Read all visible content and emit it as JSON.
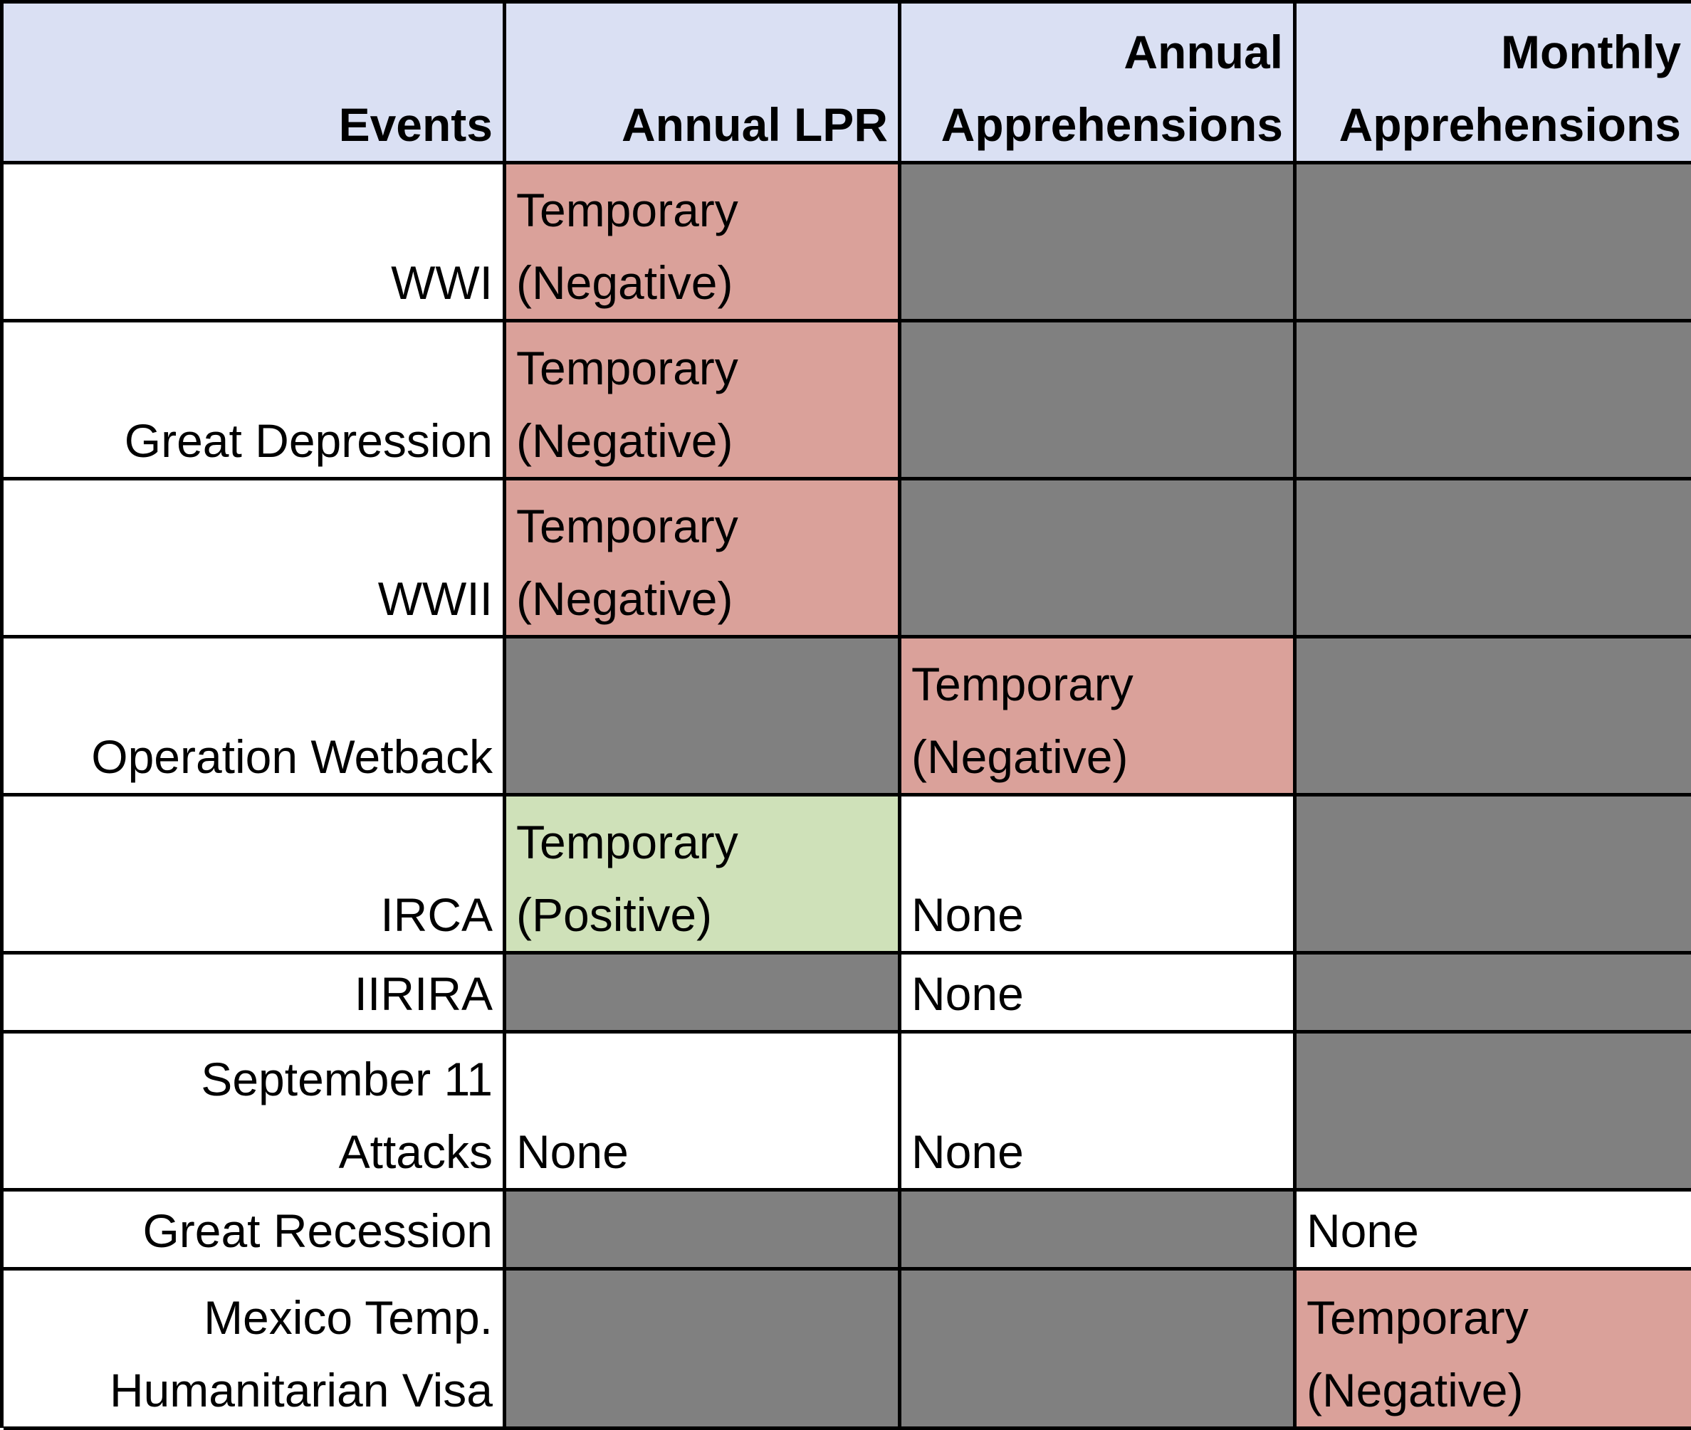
{
  "headers": {
    "events": [
      "Events"
    ],
    "annual_lpr": [
      "Annual LPR"
    ],
    "annual_apprehensions": [
      "Annual",
      "Apprehensions"
    ],
    "monthly_apprehensions": [
      "Monthly",
      "Apprehensions"
    ]
  },
  "colors": {
    "header": "#dae0f3",
    "temporary_negative": "#daa19a",
    "temporary_positive": "#cfe1b9",
    "not_applicable": "#808080",
    "none": "#ffffff"
  },
  "rows": [
    {
      "event": [
        "WWI"
      ],
      "annual_lpr": {
        "type": "neg",
        "text": [
          "Temporary",
          "(Negative)"
        ]
      },
      "annual_apprehensions": {
        "type": "na",
        "text": []
      },
      "monthly_apprehensions": {
        "type": "na",
        "text": []
      }
    },
    {
      "event": [
        "Great Depression"
      ],
      "annual_lpr": {
        "type": "neg",
        "text": [
          "Temporary",
          "(Negative)"
        ]
      },
      "annual_apprehensions": {
        "type": "na",
        "text": []
      },
      "monthly_apprehensions": {
        "type": "na",
        "text": []
      }
    },
    {
      "event": [
        "WWII"
      ],
      "annual_lpr": {
        "type": "neg",
        "text": [
          "Temporary",
          "(Negative)"
        ]
      },
      "annual_apprehensions": {
        "type": "na",
        "text": []
      },
      "monthly_apprehensions": {
        "type": "na",
        "text": []
      }
    },
    {
      "event": [
        "Operation Wetback"
      ],
      "annual_lpr": {
        "type": "na",
        "text": []
      },
      "annual_apprehensions": {
        "type": "neg",
        "text": [
          "Temporary",
          "(Negative)"
        ]
      },
      "monthly_apprehensions": {
        "type": "na",
        "text": []
      }
    },
    {
      "event": [
        "IRCA"
      ],
      "annual_lpr": {
        "type": "pos",
        "text": [
          "Temporary",
          "(Positive)"
        ]
      },
      "annual_apprehensions": {
        "type": "none",
        "text": [
          "None"
        ]
      },
      "monthly_apprehensions": {
        "type": "na",
        "text": []
      }
    },
    {
      "event": [
        "IIRIRA"
      ],
      "annual_lpr": {
        "type": "na",
        "text": []
      },
      "annual_apprehensions": {
        "type": "none",
        "text": [
          "None"
        ]
      },
      "monthly_apprehensions": {
        "type": "na",
        "text": []
      }
    },
    {
      "event": [
        "September 11",
        "Attacks"
      ],
      "annual_lpr": {
        "type": "none",
        "text": [
          "None"
        ]
      },
      "annual_apprehensions": {
        "type": "none",
        "text": [
          "None"
        ]
      },
      "monthly_apprehensions": {
        "type": "na",
        "text": []
      }
    },
    {
      "event": [
        "Great Recession"
      ],
      "annual_lpr": {
        "type": "na",
        "text": []
      },
      "annual_apprehensions": {
        "type": "na",
        "text": []
      },
      "monthly_apprehensions": {
        "type": "none",
        "text": [
          "None"
        ]
      }
    },
    {
      "event": [
        "Mexico Temp.",
        "Humanitarian Visa"
      ],
      "annual_lpr": {
        "type": "na",
        "text": []
      },
      "annual_apprehensions": {
        "type": "na",
        "text": []
      },
      "monthly_apprehensions": {
        "type": "neg",
        "text": [
          "Temporary",
          "(Negative)"
        ]
      }
    }
  ]
}
